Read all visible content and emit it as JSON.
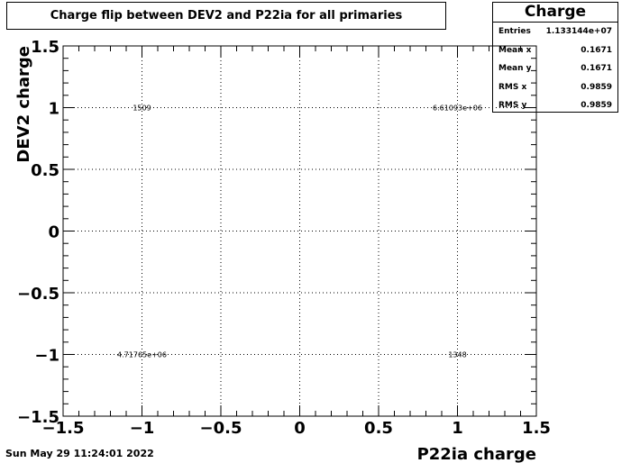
{
  "title": "Charge flip between DEV2 and P22ia for all primaries",
  "stats": {
    "name": "Charge",
    "rows": [
      {
        "label": "Entries",
        "value": "1.133144e+07"
      },
      {
        "label": "Mean x",
        "value": "0.1671"
      },
      {
        "label": "Mean y",
        "value": "0.1671"
      },
      {
        "label": "RMS x",
        "value": "0.9859"
      },
      {
        "label": "RMS y",
        "value": "0.9859"
      }
    ]
  },
  "footer": {
    "date": "Sun May 29 11:24:01 2022"
  },
  "chart_data": {
    "type": "heatmap",
    "title": "Charge flip between DEV2 and P22ia for all primaries",
    "xlabel": "P22ia charge",
    "ylabel": "DEV2 charge",
    "xlim": [
      -1.5,
      1.5
    ],
    "ylim": [
      -1.5,
      1.5
    ],
    "xticks": [
      -1.5,
      -1,
      -0.5,
      0,
      0.5,
      1,
      1.5
    ],
    "yticks": [
      -1.5,
      -1,
      -0.5,
      0,
      0.5,
      1,
      1.5
    ],
    "xtick_labels": [
      "−1.5",
      "−1",
      "−0.5",
      "0",
      "0.5",
      "1",
      "1.5"
    ],
    "ytick_labels": [
      "−1.5",
      "−1",
      "−0.5",
      "0",
      "0.5",
      "1",
      "1.5"
    ],
    "grid": true,
    "cells": [
      {
        "x": -1,
        "y": 1,
        "label": "1509"
      },
      {
        "x": 1,
        "y": 1,
        "label": "6.61093e+06"
      },
      {
        "x": -1,
        "y": -1,
        "label": "4.71765e+06"
      },
      {
        "x": 1,
        "y": -1,
        "label": "1348"
      }
    ]
  }
}
